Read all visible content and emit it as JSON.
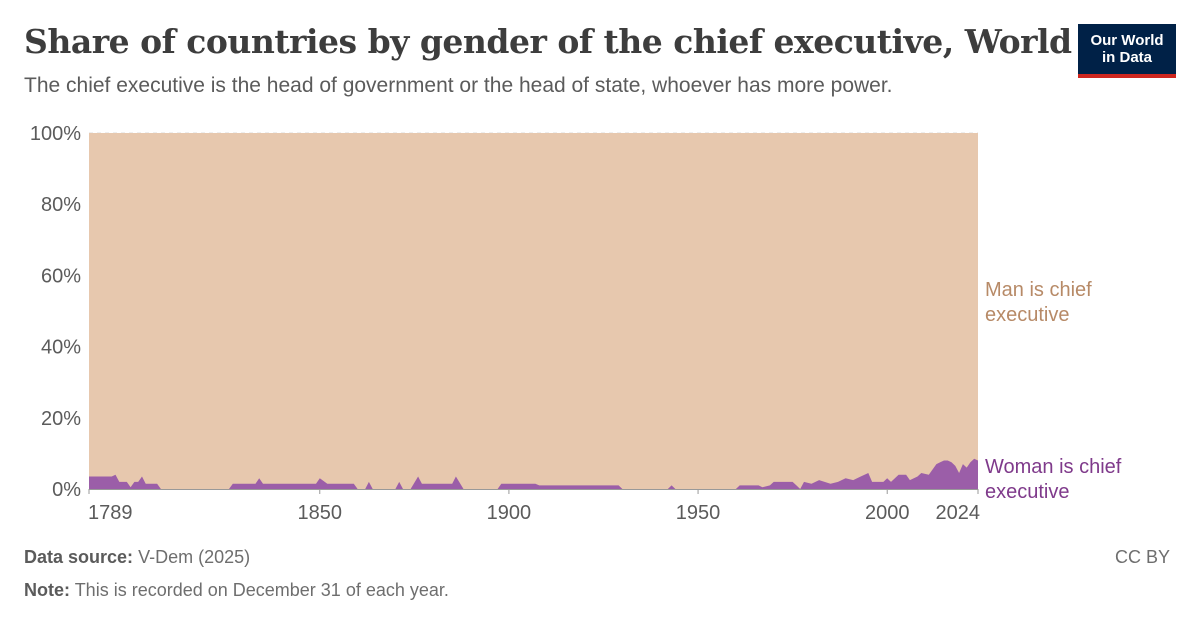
{
  "header": {
    "title": "Share of countries by gender of the chief executive, World",
    "subtitle": "The chief executive is the head of government or the head of state, whoever has more power.",
    "logo_line1": "Our World",
    "logo_line2": "in Data"
  },
  "footer": {
    "source_label": "Data source:",
    "source_value": "V-Dem (2025)",
    "note_label": "Note:",
    "note_value": "This is recorded on December 31 of each year.",
    "license": "CC BY"
  },
  "colors": {
    "man": "#e7c8ae",
    "man_label": "#b78a67",
    "woman": "#9b5ea8",
    "woman_label": "#7f3a8b",
    "grid": "#dddddd"
  },
  "chart_data": {
    "type": "area",
    "stacked": true,
    "percent": true,
    "x_range": [
      1789,
      2024
    ],
    "ylim": [
      0,
      100
    ],
    "x_ticks": [
      1789,
      1850,
      1900,
      1950,
      2000,
      2024
    ],
    "y_ticks": [
      0,
      20,
      40,
      60,
      80,
      100
    ],
    "y_tick_labels": [
      "0%",
      "20%",
      "40%",
      "60%",
      "80%",
      "100%"
    ],
    "grid": "horizontal dashed",
    "series": [
      {
        "name": "Woman is chief executive",
        "points": [
          [
            1789,
            3.5
          ],
          [
            1795,
            3.5
          ],
          [
            1796,
            4
          ],
          [
            1797,
            2
          ],
          [
            1799,
            2
          ],
          [
            1800,
            0.5
          ],
          [
            1801,
            2
          ],
          [
            1802,
            2
          ],
          [
            1803,
            3.5
          ],
          [
            1804,
            1.5
          ],
          [
            1807,
            1.5
          ],
          [
            1808,
            0
          ],
          [
            1826,
            0
          ],
          [
            1827,
            1.5
          ],
          [
            1833,
            1.5
          ],
          [
            1834,
            3
          ],
          [
            1835,
            1.5
          ],
          [
            1849,
            1.5
          ],
          [
            1850,
            3
          ],
          [
            1852,
            1.5
          ],
          [
            1859,
            1.5
          ],
          [
            1860,
            0
          ],
          [
            1862,
            0
          ],
          [
            1863,
            2
          ],
          [
            1864,
            0
          ],
          [
            1870,
            0
          ],
          [
            1871,
            2
          ],
          [
            1872,
            0
          ],
          [
            1874,
            0
          ],
          [
            1876,
            3.5
          ],
          [
            1877,
            1.5
          ],
          [
            1885,
            1.5
          ],
          [
            1886,
            3.5
          ],
          [
            1888,
            0
          ],
          [
            1897,
            0
          ],
          [
            1898,
            1.5
          ],
          [
            1907,
            1.5
          ],
          [
            1908,
            1
          ],
          [
            1929,
            1
          ],
          [
            1930,
            0
          ],
          [
            1942,
            0
          ],
          [
            1943,
            1
          ],
          [
            1944,
            0
          ],
          [
            1960,
            0
          ],
          [
            1961,
            1
          ],
          [
            1966,
            1
          ],
          [
            1967,
            0.5
          ],
          [
            1969,
            1
          ],
          [
            1970,
            2
          ],
          [
            1975,
            2
          ],
          [
            1976,
            1
          ],
          [
            1977,
            0
          ],
          [
            1978,
            2
          ],
          [
            1980,
            1.5
          ],
          [
            1982,
            2.5
          ],
          [
            1985,
            1.5
          ],
          [
            1987,
            2
          ],
          [
            1989,
            3
          ],
          [
            1991,
            2.5
          ],
          [
            1993,
            3.5
          ],
          [
            1995,
            4.5
          ],
          [
            1996,
            2
          ],
          [
            1999,
            2
          ],
          [
            2000,
            3
          ],
          [
            2001,
            2
          ],
          [
            2003,
            4
          ],
          [
            2005,
            4
          ],
          [
            2006,
            2.5
          ],
          [
            2008,
            3.5
          ],
          [
            2009,
            4.5
          ],
          [
            2011,
            4
          ],
          [
            2013,
            7
          ],
          [
            2014,
            7.5
          ],
          [
            2015,
            8
          ],
          [
            2016,
            8
          ],
          [
            2017,
            7.5
          ],
          [
            2018,
            6.5
          ],
          [
            2019,
            4.5
          ],
          [
            2020,
            7
          ],
          [
            2021,
            6
          ],
          [
            2022,
            7.5
          ],
          [
            2023,
            8.5
          ],
          [
            2024,
            8
          ]
        ]
      },
      {
        "name": "Man is chief executive",
        "points": "remainder to 100%"
      }
    ]
  }
}
